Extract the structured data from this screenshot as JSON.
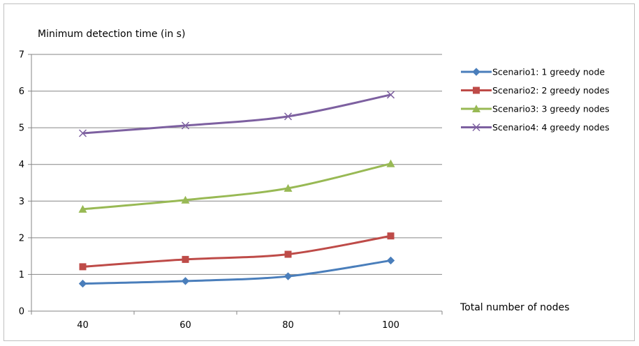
{
  "chart_data": {
    "type": "line",
    "title": "Minimum detection time (in s)",
    "xlabel": "Total number of nodes",
    "ylabel": "",
    "categories": [
      "40",
      "60",
      "80",
      "100"
    ],
    "ylim": [
      0,
      7
    ],
    "yticks": [
      "0",
      "1",
      "2",
      "3",
      "4",
      "5",
      "6",
      "7"
    ],
    "grid": true,
    "legend": "right",
    "series": [
      {
        "name": "Scenario1: 1 greedy node",
        "values": [
          0.75,
          0.82,
          0.95,
          1.38
        ],
        "color": "#4a7ebb",
        "marker": "diamond"
      },
      {
        "name": "Scenario2: 2 greedy nodes",
        "values": [
          1.21,
          1.41,
          1.55,
          2.05
        ],
        "color": "#be4b48",
        "marker": "square"
      },
      {
        "name": "Scenario3: 3 greedy nodes",
        "values": [
          2.78,
          3.03,
          3.35,
          4.02
        ],
        "color": "#98b954",
        "marker": "triangle"
      },
      {
        "name": "Scenario4: 4 greedy nodes",
        "values": [
          4.85,
          5.06,
          5.31,
          5.9
        ],
        "color": "#7d60a0",
        "marker": "x"
      }
    ]
  }
}
